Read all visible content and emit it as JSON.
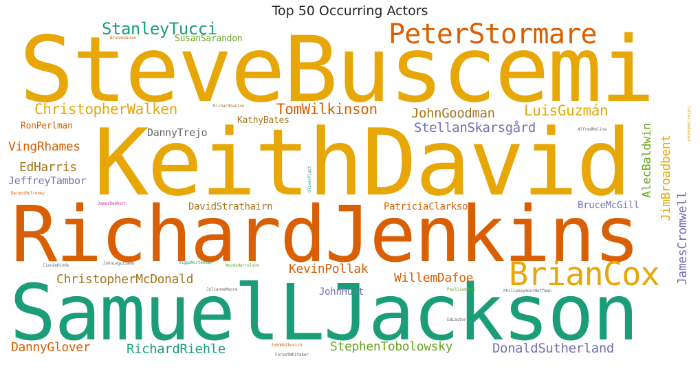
{
  "title": "Top 50 Occurring Actors",
  "colors": {
    "gold": "#e6a707",
    "orange": "#d95f02",
    "teal": "#1b9e77",
    "purple": "#7570b3",
    "olive": "#a6761d",
    "green": "#66a61e",
    "pink": "#e7298a",
    "gray": "#666666"
  },
  "words": [
    {
      "text": "SteveBuscemi"
    },
    {
      "text": "KeithDavid"
    },
    {
      "text": "RichardJenkins"
    },
    {
      "text": "SamuelLJackson"
    },
    {
      "text": "PeterStormare"
    },
    {
      "text": "StanleyTucci"
    },
    {
      "text": "SusanSarandon"
    },
    {
      "text": "BrunoGanson"
    },
    {
      "text": "ChristopherWalken"
    },
    {
      "text": "RichardGanlon"
    },
    {
      "text": "TomWilkinson"
    },
    {
      "text": "JohnGoodman"
    },
    {
      "text": "LuisGuzmán"
    },
    {
      "text": "KathyBates"
    },
    {
      "text": "RonPerlman"
    },
    {
      "text": "StellanSkarsgård"
    },
    {
      "text": "DannyTrejo"
    },
    {
      "text": "VingRhames"
    },
    {
      "text": "EdHarris"
    },
    {
      "text": "JeffreyTambor"
    },
    {
      "text": "AlecBaldwin"
    },
    {
      "text": "JimBroadbent"
    },
    {
      "text": "JamesCromwell"
    },
    {
      "text": "DermotMulroney"
    },
    {
      "text": "JamesRebhorn"
    },
    {
      "text": "DavidStrathairn"
    },
    {
      "text": "PatriciaClarkson"
    },
    {
      "text": "BruceMcGill"
    },
    {
      "text": "BrianCox"
    },
    {
      "text": "KevinPollak"
    },
    {
      "text": "ChristopherMcDonald"
    },
    {
      "text": "WillemDafoe"
    },
    {
      "text": "JohnHurt"
    },
    {
      "text": "DannyGlover"
    },
    {
      "text": "RichardRiehle"
    },
    {
      "text": "StephenTobolowsky"
    },
    {
      "text": "DonaldSutherland"
    },
    {
      "text": "AlfredMolina"
    },
    {
      "text": "CatherineKeener"
    },
    {
      "text": "OliverPlatt"
    },
    {
      "text": "CiaránHinds"
    },
    {
      "text": "JohnLeguizamo"
    },
    {
      "text": "ViggoMortensen"
    },
    {
      "text": "WoodyHarrelson"
    },
    {
      "text": "JulianneMoore"
    },
    {
      "text": "PaulGiamatti"
    },
    {
      "text": "PhilipSeymourHoffman"
    },
    {
      "text": "EdLauter"
    },
    {
      "text": "JohnMalkovich"
    },
    {
      "text": "ForestWhitaker"
    }
  ]
}
